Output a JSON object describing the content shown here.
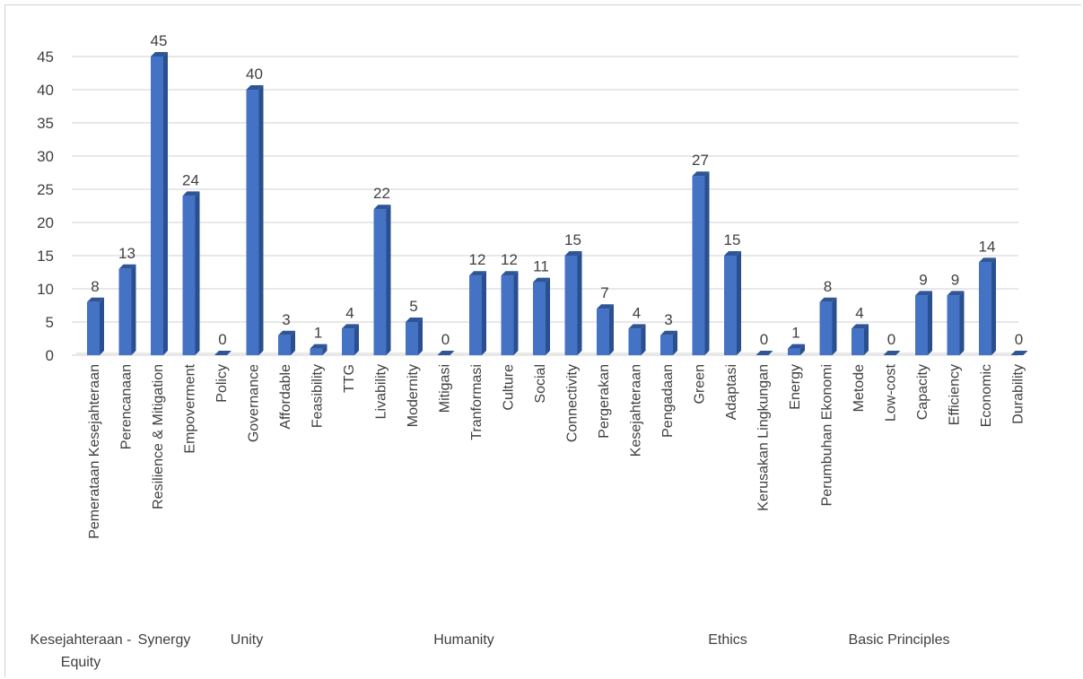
{
  "chart_data": {
    "type": "bar",
    "style": "3d-column",
    "title": "",
    "xlabel": "",
    "ylabel": "",
    "ylim": [
      0,
      45
    ],
    "yticks": [
      0,
      5,
      10,
      15,
      20,
      25,
      30,
      35,
      40,
      45
    ],
    "grid": true,
    "legend": "none",
    "bar_color": "#4472c4",
    "categories": [
      "Pemerataan Kesejahteraan",
      "Perencanaan",
      "Resilience & Mitigation",
      "Empoverment",
      "Policy",
      "Governance",
      "Affordable",
      "Feasibility",
      "TTG",
      "Livability",
      "Modernity",
      "Mitigasi",
      "Tranformasi",
      "Culture",
      "Social",
      "Connectivity",
      "Pergerakan",
      "Kesejahteraan",
      "Pengadaan",
      "Green",
      "Adaptasi",
      "Kerusakan Lingkungan",
      "Energy",
      "Perumbuhan Ekonomi",
      "Metode",
      "Low-cost",
      "Capacity",
      "Efficiency",
      "Economic",
      "Durability"
    ],
    "values": [
      8,
      13,
      45,
      24,
      0,
      40,
      3,
      1,
      4,
      22,
      5,
      0,
      12,
      12,
      11,
      15,
      7,
      4,
      3,
      27,
      15,
      0,
      1,
      8,
      4,
      0,
      9,
      9,
      14,
      0
    ],
    "groups": [
      {
        "label": [
          "Kesejahteraan -",
          "Equity"
        ]
      },
      {
        "label": [
          "Synergy"
        ]
      },
      {
        "label": [
          "Unity"
        ]
      },
      {
        "label": [
          "Humanity"
        ]
      },
      {
        "label": [
          "Ethics"
        ]
      },
      {
        "label": [
          "Basic Principles"
        ]
      }
    ]
  }
}
